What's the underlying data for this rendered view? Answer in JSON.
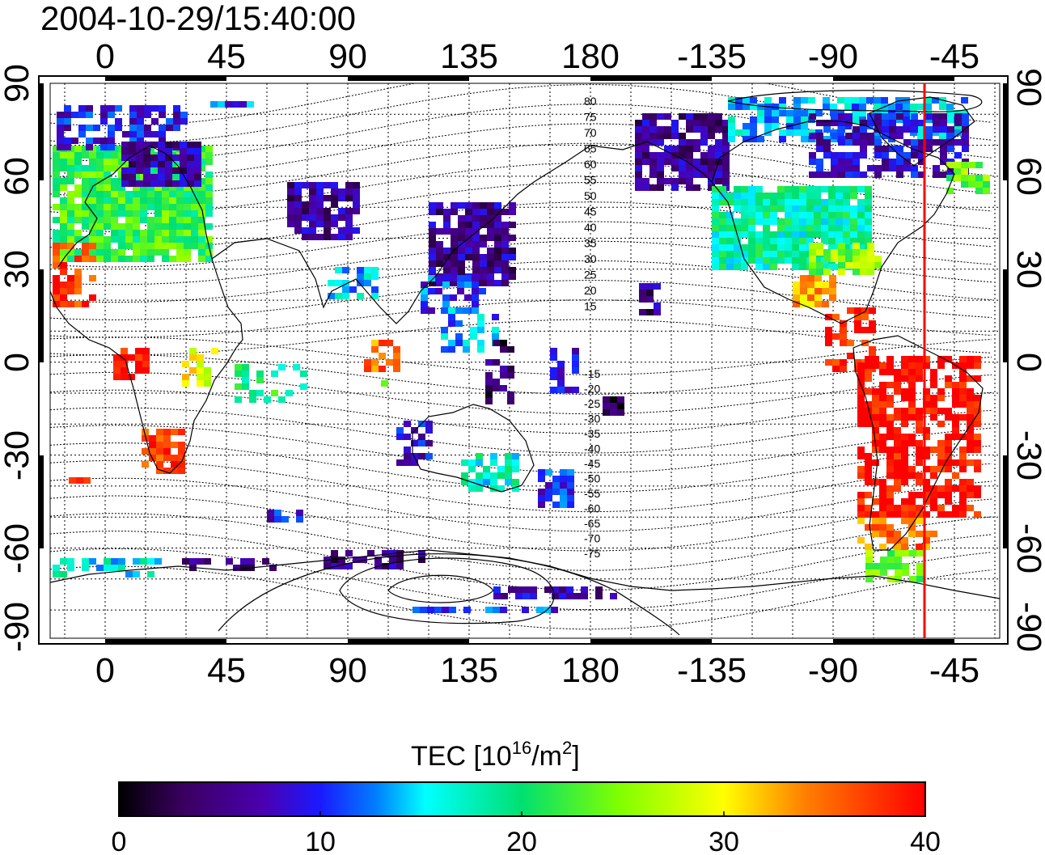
{
  "title": "2004-10-29/15:40:00",
  "top_ticks": [
    "0",
    "45",
    "90",
    "135",
    "180",
    "-135",
    "-90",
    "-45"
  ],
  "bottom_ticks": [
    "0",
    "45",
    "90",
    "135",
    "180",
    "-135",
    "-90",
    "-45"
  ],
  "left_ticks": [
    "90",
    "60",
    "30",
    "0",
    "-30",
    "-60",
    "-90"
  ],
  "right_ticks": [
    "90",
    "60",
    "30",
    "0",
    "-30",
    "-60",
    "-90"
  ],
  "mlat_labels_upper": [
    "80",
    "75",
    "70",
    "65",
    "60",
    "55",
    "50",
    "45",
    "40",
    "35",
    "30",
    "25",
    "20",
    "15"
  ],
  "mlat_labels_lower": [
    "-15",
    "-20",
    "-25",
    "-30",
    "-35",
    "-40",
    "-45",
    "-50",
    "-55",
    "-60",
    "-65",
    "-70",
    "-75"
  ],
  "colorbar": {
    "title_main": "TEC  [10",
    "title_sup1": "16",
    "title_mid": "/m",
    "title_sup2": "2",
    "title_end": "]",
    "ticks": [
      "0",
      "10",
      "20",
      "30",
      "40"
    ],
    "min": 0,
    "max": 40
  },
  "colors": {
    "marker_line": "#ff0000",
    "frame": "#000000"
  },
  "marker_longitude": -52
}
